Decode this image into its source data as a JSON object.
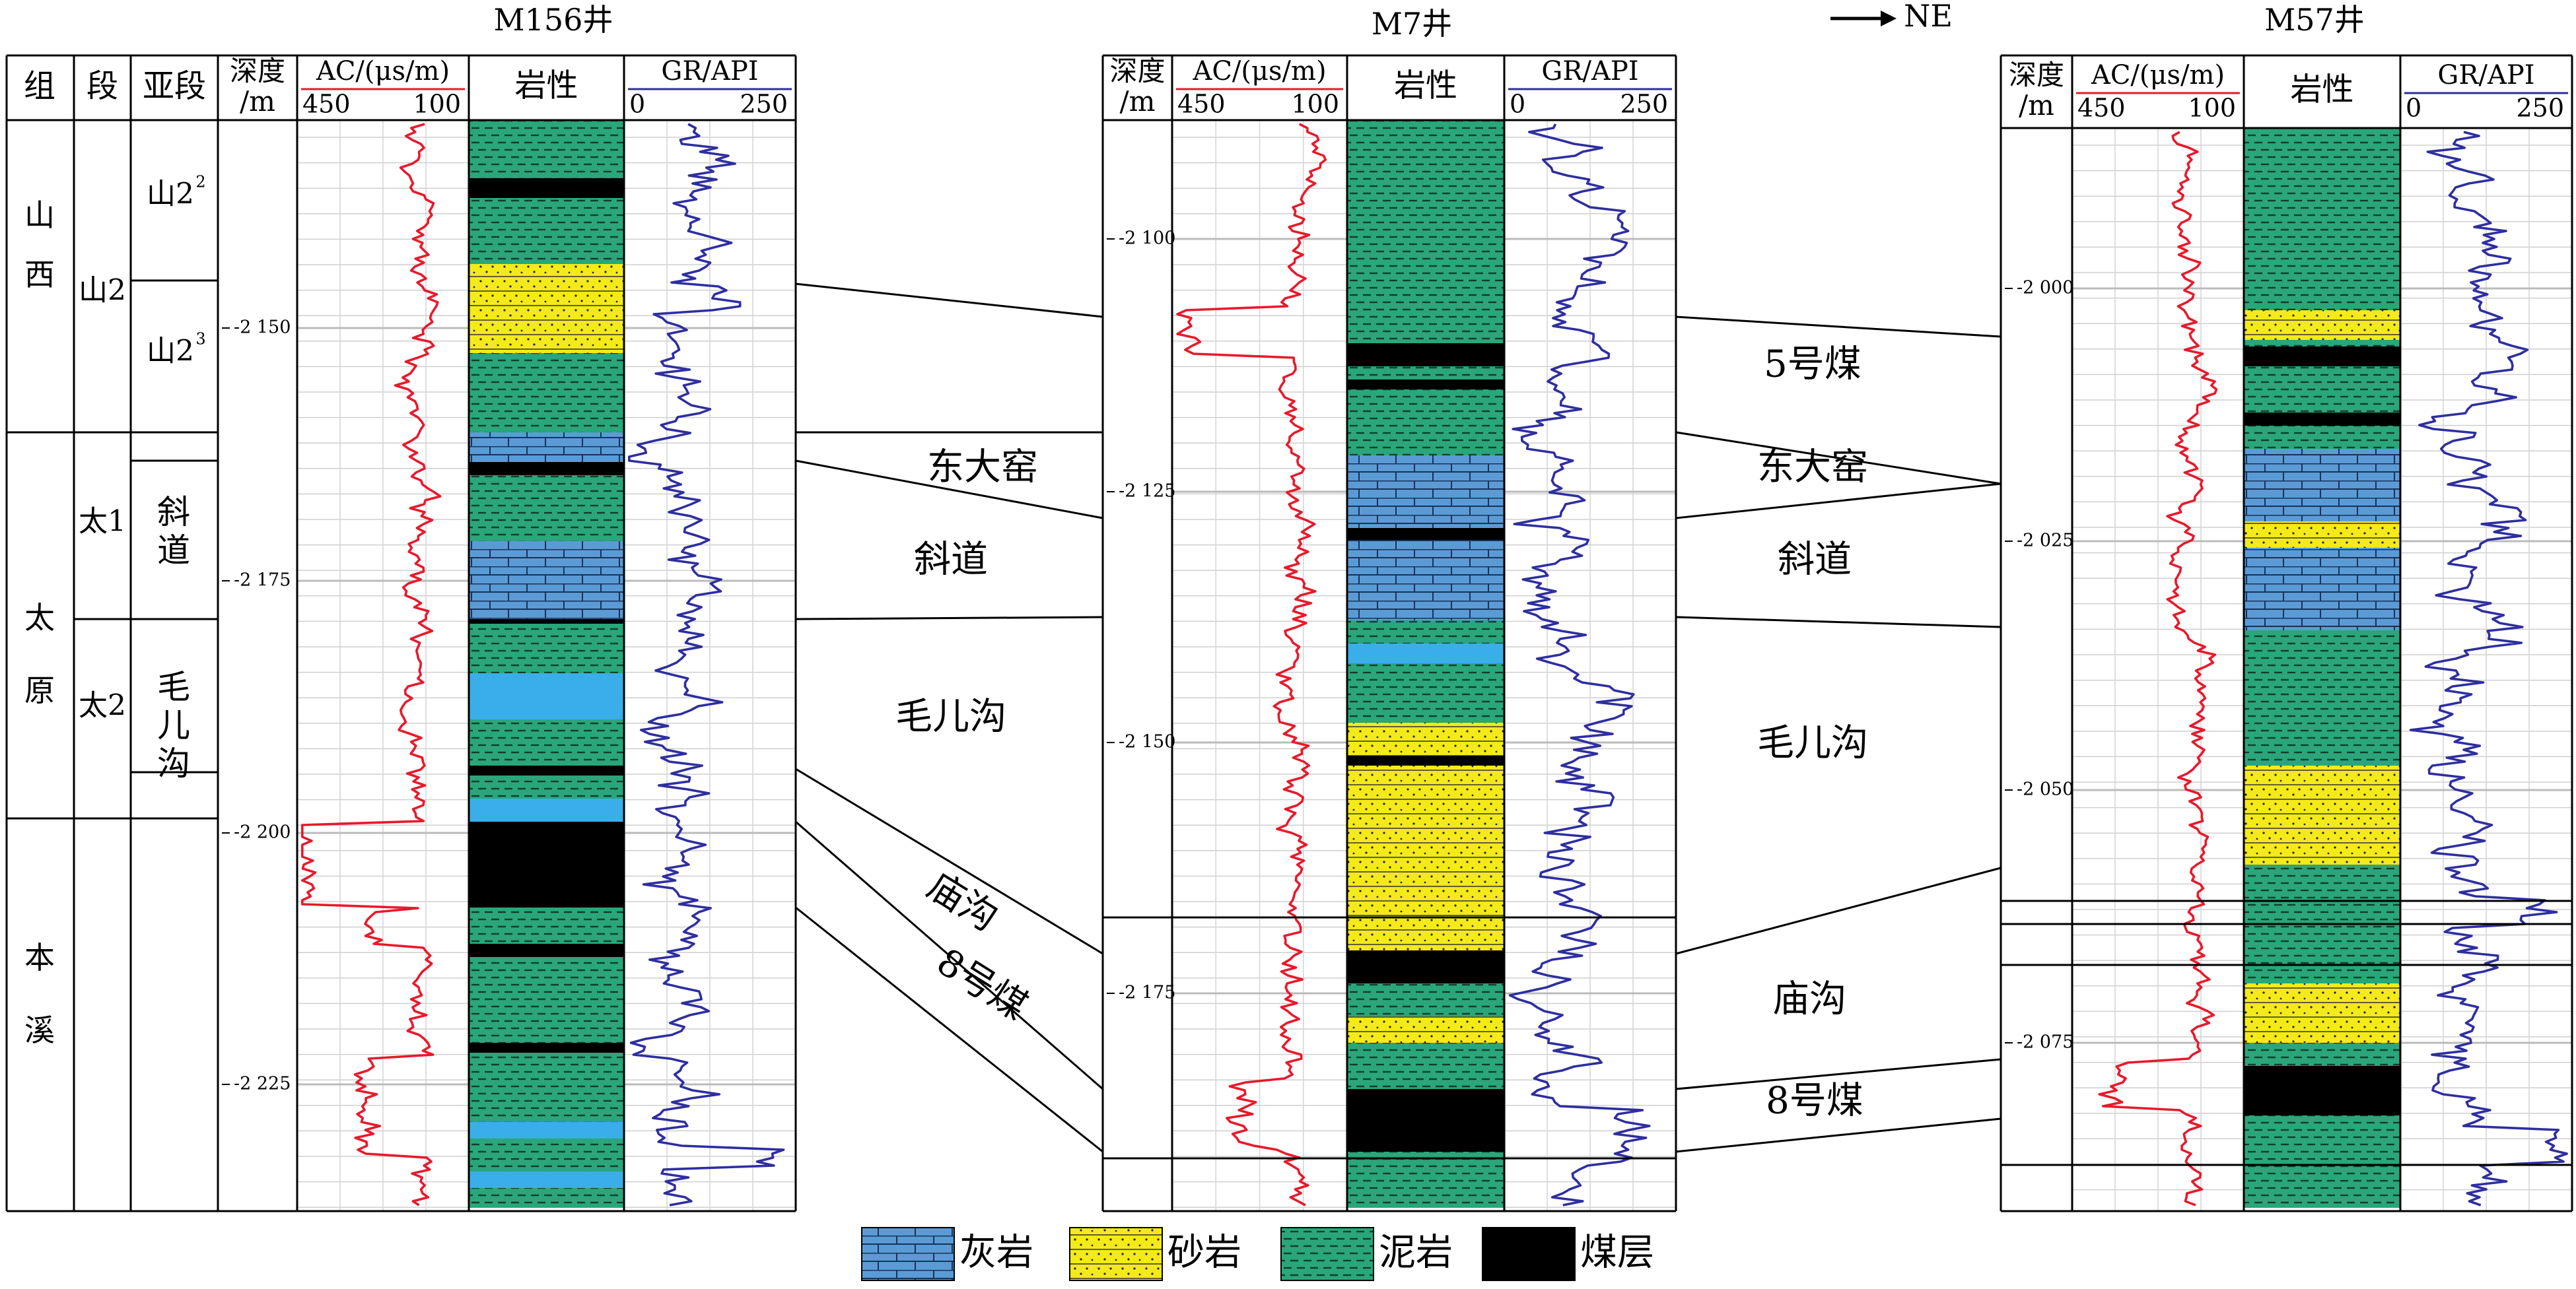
{
  "direction_label": "→ NE",
  "header_labels": {
    "group": "组",
    "section": "段",
    "subsection": "亚段",
    "depth_line1": "深度",
    "depth_line2": "/m",
    "ac_title": "AC/(μs/m)",
    "ac_min": "450",
    "ac_max": "100",
    "lith_title": "岩性",
    "gr_title": "GR/API",
    "gr_min": "0",
    "gr_max": "250"
  },
  "wells": [
    {
      "id": "M156",
      "name": "M156井",
      "depth_ticks": [
        "2 150",
        "2 175",
        "2 200",
        "2 225"
      ]
    },
    {
      "id": "M7",
      "name": "M7井",
      "depth_ticks": [
        "2 100",
        "2 125",
        "2 150",
        "2 175"
      ]
    },
    {
      "id": "M57",
      "name": "M57井",
      "depth_ticks": [
        "2 000",
        "2 025",
        "2 050",
        "2 075"
      ]
    }
  ],
  "strat_column": {
    "groups": [
      "山西",
      "太原",
      "本溪"
    ],
    "sections": [
      "山2",
      "太1",
      "太2"
    ],
    "subsections": [
      {
        "base": "山2",
        "sup": "2"
      },
      {
        "base": "山2",
        "sup": "3"
      },
      {
        "text": "斜道"
      },
      {
        "text": "毛儿沟"
      }
    ]
  },
  "correlation_labels": {
    "left": [
      "东大窑",
      "斜道",
      "毛儿沟",
      "庙沟",
      "8号煤"
    ],
    "right": [
      "5号煤",
      "东大窑",
      "斜道",
      "毛儿沟",
      "庙沟",
      "8号煤"
    ]
  },
  "legend": [
    {
      "key": "limestone",
      "label": "灰岩"
    },
    {
      "key": "sandstone",
      "label": "砂岩"
    },
    {
      "key": "mudstone",
      "label": "泥岩"
    },
    {
      "key": "coal",
      "label": "煤层"
    }
  ],
  "colors": {
    "ac_curve": "#e8192c",
    "gr_curve": "#2e2ea0",
    "limestone": "#5b9bd5",
    "limestone_solid": "#3aaee8",
    "sandstone": "#f4ea1a",
    "mudstone": "#2aa67a",
    "coal": "#000000"
  }
}
